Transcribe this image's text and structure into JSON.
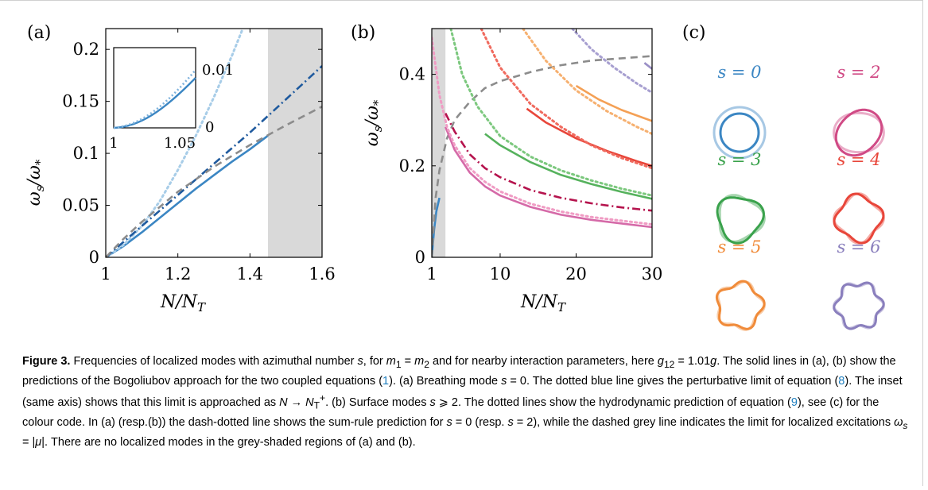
{
  "panels": {
    "a": {
      "label": "(a)",
      "inset": {
        "x_ticks": [
          "1",
          "1.05"
        ],
        "y_ticks": [
          "0.01",
          "0"
        ]
      }
    },
    "b": {
      "label": "(b)"
    },
    "c": {
      "label": "(c)",
      "modes": [
        {
          "label": "s = 0",
          "s": 0,
          "color": "#3b86c3"
        },
        {
          "label": "s = 2",
          "s": 2,
          "color": "#d04a85"
        },
        {
          "label": "s = 3",
          "s": 3,
          "color": "#3aa24c"
        },
        {
          "label": "s = 4",
          "s": 4,
          "color": "#e8463a"
        },
        {
          "label": "s = 5",
          "s": 5,
          "color": "#f08b3a"
        },
        {
          "label": "s = 6",
          "s": 6,
          "color": "#8a7fbd"
        }
      ]
    }
  },
  "chart_data": [
    {
      "type": "line",
      "panel": "a",
      "xlabel": "N/N_T",
      "ylabel": "ω_s/ω_*",
      "xlim": [
        1,
        1.6
      ],
      "ylim": [
        0,
        0.22
      ],
      "x_ticks": [
        "1",
        "1.2",
        "1.4",
        "1.6"
      ],
      "y_ticks": [
        "0",
        "0.05",
        "0.1",
        "0.15",
        "0.2"
      ],
      "shaded_region": [
        1.45,
        1.6
      ],
      "series": [
        {
          "style": "solid",
          "color": "#3b86c3",
          "x": [
            1.0,
            1.05,
            1.1,
            1.15,
            1.2,
            1.25,
            1.3,
            1.35,
            1.4,
            1.45
          ],
          "y": [
            0.0,
            0.011,
            0.024,
            0.038,
            0.052,
            0.066,
            0.079,
            0.092,
            0.104,
            0.117
          ]
        },
        {
          "style": "dotted",
          "color": "#a8cde8",
          "x": [
            1.0,
            1.05,
            1.1,
            1.15,
            1.2,
            1.25,
            1.3,
            1.35,
            1.38
          ],
          "y": [
            0.0,
            0.012,
            0.03,
            0.054,
            0.084,
            0.117,
            0.154,
            0.194,
            0.22
          ]
        },
        {
          "style": "dash-dot",
          "color": "#1f5a9e",
          "x": [
            1.0,
            1.1,
            1.2,
            1.3,
            1.4,
            1.5,
            1.6
          ],
          "y": [
            0.0,
            0.03,
            0.06,
            0.09,
            0.12,
            0.152,
            0.184
          ]
        },
        {
          "style": "dashed",
          "color": "#8c8c8c",
          "x": [
            1.0,
            1.05,
            1.1,
            1.2,
            1.3,
            1.4,
            1.5,
            1.6
          ],
          "y": [
            0.0,
            0.018,
            0.034,
            0.063,
            0.087,
            0.108,
            0.127,
            0.145
          ]
        }
      ]
    },
    {
      "type": "line",
      "panel": "b",
      "xlabel": "N/N_T",
      "ylabel": "ω_s/ω_*",
      "xlim": [
        1,
        30
      ],
      "ylim": [
        0,
        0.5
      ],
      "x_ticks": [
        "1",
        "10",
        "20",
        "30"
      ],
      "y_ticks": [
        "0",
        "0.2",
        "0.4"
      ],
      "shaded_region": [
        1,
        2.8
      ],
      "series": [
        {
          "style": "solid",
          "color": "#3b86c3",
          "x": [
            1.0,
            1.3,
            1.6,
            2.0
          ],
          "y": [
            0.0,
            0.06,
            0.1,
            0.13
          ]
        },
        {
          "style": "dashed",
          "color": "#8c8c8c",
          "x": [
            1.0,
            1.5,
            2.0,
            3.0,
            4.0,
            6.0,
            8.0,
            10.0,
            14.0,
            18.0,
            22.0,
            26.0,
            30.0
          ],
          "y": [
            0.0,
            0.13,
            0.19,
            0.26,
            0.3,
            0.34,
            0.37,
            0.385,
            0.405,
            0.42,
            0.43,
            0.435,
            0.44
          ]
        },
        {
          "style": "solid",
          "color": "#d56aa8",
          "x": [
            2.8,
            4.0,
            6.0,
            8.0,
            10.0,
            14.0,
            18.0,
            22.0,
            26.0,
            30.0
          ],
          "y": [
            0.285,
            0.235,
            0.185,
            0.155,
            0.135,
            0.11,
            0.093,
            0.082,
            0.074,
            0.066
          ]
        },
        {
          "style": "dotted",
          "color": "#f09cc4",
          "x": [
            1.0,
            2.0,
            3.0,
            4.0,
            6.0,
            8.0,
            10.0,
            14.0,
            18.0,
            22.0,
            26.0,
            30.0
          ],
          "y": [
            0.48,
            0.355,
            0.285,
            0.245,
            0.195,
            0.165,
            0.144,
            0.117,
            0.1,
            0.088,
            0.08,
            0.072
          ]
        },
        {
          "style": "dash-dot",
          "color": "#b5134d",
          "x": [
            2.8,
            4.0,
            6.0,
            8.0,
            10.0,
            14.0,
            18.0,
            22.0,
            26.0,
            30.0
          ],
          "y": [
            0.315,
            0.275,
            0.225,
            0.195,
            0.175,
            0.147,
            0.13,
            0.118,
            0.109,
            0.102
          ]
        },
        {
          "style": "solid",
          "color": "#56b25d",
          "x": [
            8.0,
            10.0,
            14.0,
            18.0,
            22.0,
            26.0,
            30.0
          ],
          "y": [
            0.27,
            0.245,
            0.208,
            0.18,
            0.16,
            0.143,
            0.128
          ]
        },
        {
          "style": "dotted",
          "color": "#7cc87e",
          "x": [
            3.5,
            5.0,
            7.0,
            10.0,
            14.0,
            18.0,
            22.0,
            26.0,
            30.0
          ],
          "y": [
            0.5,
            0.4,
            0.33,
            0.265,
            0.22,
            0.19,
            0.168,
            0.15,
            0.135
          ]
        },
        {
          "style": "solid",
          "color": "#e8463a",
          "x": [
            13.5,
            16.0,
            20.0,
            24.0,
            28.0,
            30.0
          ],
          "y": [
            0.325,
            0.295,
            0.26,
            0.233,
            0.21,
            0.2
          ]
        },
        {
          "style": "dotted",
          "color": "#f06a5e",
          "x": [
            7.5,
            10.0,
            14.0,
            18.0,
            22.0,
            26.0,
            30.0
          ],
          "y": [
            0.5,
            0.415,
            0.335,
            0.285,
            0.245,
            0.217,
            0.195
          ]
        },
        {
          "style": "solid",
          "color": "#f4a055",
          "x": [
            20.0,
            23.0,
            26.0,
            30.0
          ],
          "y": [
            0.375,
            0.345,
            0.322,
            0.298
          ]
        },
        {
          "style": "dotted",
          "color": "#f6b070",
          "x": [
            13.0,
            16.0,
            20.0,
            24.0,
            28.0,
            30.0
          ],
          "y": [
            0.5,
            0.43,
            0.365,
            0.32,
            0.285,
            0.27
          ]
        },
        {
          "style": "solid",
          "color": "#9a8fc6",
          "x": [
            29.0,
            30.0
          ],
          "y": [
            0.425,
            0.412
          ]
        },
        {
          "style": "dotted",
          "color": "#a79fd0",
          "x": [
            19.5,
            22.0,
            25.0,
            28.0,
            30.0
          ],
          "y": [
            0.5,
            0.455,
            0.415,
            0.38,
            0.36
          ]
        }
      ]
    }
  ],
  "caption": {
    "figure_label": "Figure 3.",
    "p1": " Frequencies of localized modes with azimuthal number ",
    "s": "s",
    "p2": ", for ",
    "m12": "m",
    "p3": " = ",
    "m2": "m",
    "p4": " and for nearby interaction parameters, here ",
    "g12": "g",
    "p5": " = 1.01",
    "g": "g",
    "p6": ". The solid lines in (a), (b) show the predictions of the Bogoliubov approach for the two coupled equations (",
    "c1": "1",
    "p7": "). (a) Breathing mode ",
    "p8": " = 0. The dotted blue line gives the perturbative limit of equation (",
    "c8": "8",
    "p9": "). The inset (same axis) shows that this limit is approached as ",
    "lim": "N → N",
    "p10": ". (b) Surface modes ",
    "p11": " ⩾ 2. The dotted lines show the hydrodynamic prediction of equation (",
    "c9": "9",
    "p12": "), see (c) for the colour code. In (a) (resp.(b)) the dash-dotted line shows the sum-rule prediction for ",
    "p13": " = 0 (resp. ",
    "p14": " = 2), while the dashed grey line indicates the limit for localized excitations ",
    "omega": "ω",
    "p15": " = |",
    "mu": "μ",
    "p16": "|. There are no localized modes in the grey-shaded regions of (a) and (b)."
  }
}
